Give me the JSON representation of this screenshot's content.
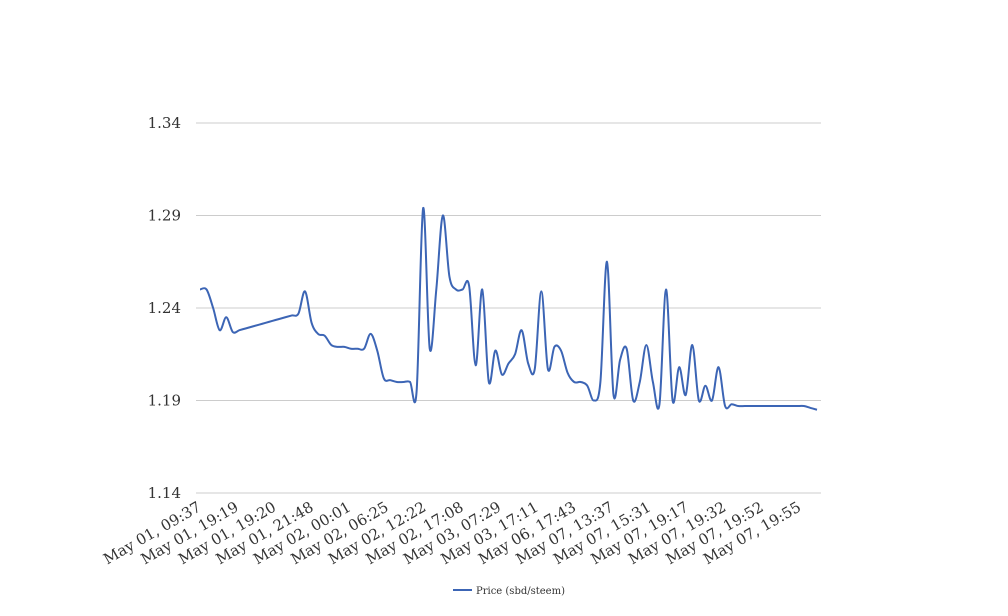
{
  "chart_data": {
    "type": "line",
    "title": "",
    "xlabel": "",
    "ylabel": "",
    "ylim": [
      1.14,
      1.34
    ],
    "yticks": [
      "1.34",
      "1.29",
      "1.24",
      "1.19",
      "1.14"
    ],
    "ytick_values": [
      1.34,
      1.29,
      1.24,
      1.19,
      1.14
    ],
    "grid": true,
    "legend_position": "bottom-center",
    "x_tick_labels": [
      "May 01, 09:37",
      "May 01, 19:19",
      "May 01, 19:20",
      "May 01, 21:48",
      "May 02, 00:01",
      "May 02, 06:25",
      "May 02, 12:22",
      "May 02, 17:08",
      "May 03, 07:29",
      "May 03, 17:11",
      "May 06, 17:43",
      "May 07, 13:37",
      "May 07, 15:31",
      "May 07, 19:17",
      "May 07, 19:32",
      "May 07, 19:52",
      "May 07, 19:55"
    ],
    "series": [
      {
        "name": "Price (sbd/steem)",
        "color": "#3c65b5",
        "values": [
          1.25,
          1.25,
          1.24,
          1.228,
          1.235,
          1.227,
          1.228,
          1.229,
          1.23,
          1.231,
          1.232,
          1.233,
          1.234,
          1.235,
          1.236,
          1.237,
          1.249,
          1.232,
          1.226,
          1.225,
          1.22,
          1.219,
          1.219,
          1.218,
          1.218,
          1.218,
          1.226,
          1.217,
          1.202,
          1.201,
          1.2,
          1.2,
          1.2,
          1.195,
          1.294,
          1.218,
          1.25,
          1.29,
          1.257,
          1.25,
          1.25,
          1.252,
          1.209,
          1.25,
          1.2,
          1.217,
          1.204,
          1.21,
          1.215,
          1.228,
          1.21,
          1.207,
          1.249,
          1.207,
          1.219,
          1.217,
          1.205,
          1.2,
          1.2,
          1.198,
          1.19,
          1.2,
          1.265,
          1.193,
          1.212,
          1.218,
          1.19,
          1.2,
          1.22,
          1.2,
          1.188,
          1.25,
          1.19,
          1.208,
          1.193,
          1.22,
          1.19,
          1.198,
          1.19,
          1.208,
          1.187,
          1.188,
          1.187,
          1.187,
          1.187,
          1.187,
          1.187,
          1.187,
          1.187,
          1.187,
          1.187,
          1.187,
          1.187,
          1.186,
          1.185
        ]
      }
    ]
  }
}
